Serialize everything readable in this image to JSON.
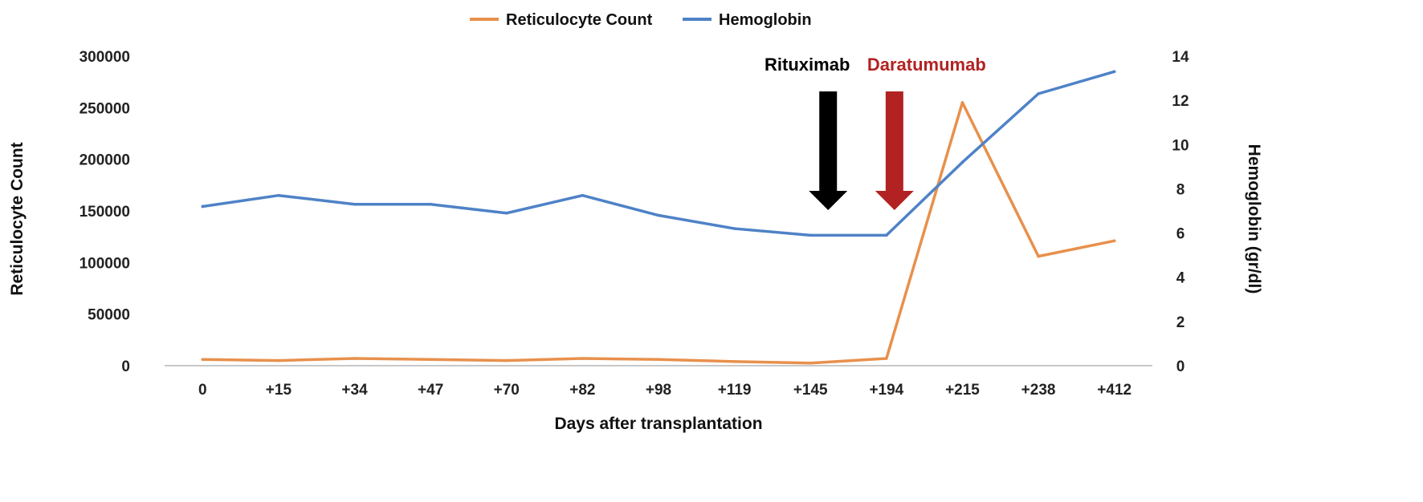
{
  "chart_data": {
    "type": "line",
    "title": "",
    "xlabel": "Days after transplantation",
    "ylabel": "Reticulocyte Count",
    "y2label": "Hemoglobin (gr/dl)",
    "categories": [
      "0",
      "+15",
      "+34",
      "+47",
      "+70",
      "+82",
      "+98",
      "+119",
      "+145",
      "+194",
      "+215",
      "+238",
      "+412"
    ],
    "ylim": [
      0,
      300000
    ],
    "yticks": [
      0,
      50000,
      100000,
      150000,
      200000,
      250000,
      300000
    ],
    "y2lim": [
      0,
      14
    ],
    "y2ticks": [
      0,
      2,
      4,
      6,
      8,
      10,
      12,
      14
    ],
    "legend_position": "top-center",
    "grid": false,
    "series": [
      {
        "name": "Reticulocyte Count",
        "axis": "left",
        "color": "#E8904C",
        "values": [
          6000,
          5000,
          7000,
          6000,
          5000,
          7000,
          6000,
          4000,
          2500,
          7000,
          255000,
          106000,
          121000
        ]
      },
      {
        "name": "Hemoglobin",
        "axis": "right",
        "color": "#4E82C7",
        "values": [
          7.2,
          7.7,
          7.3,
          7.3,
          6.9,
          7.7,
          6.8,
          6.2,
          5.9,
          5.9,
          9.2,
          12.3,
          13.3
        ]
      }
    ],
    "annotations": [
      {
        "text": "Rituximab",
        "category": "+145",
        "color": "#000000"
      },
      {
        "text": "Daratumumab",
        "category": "+194",
        "color": "#B22222"
      }
    ]
  }
}
